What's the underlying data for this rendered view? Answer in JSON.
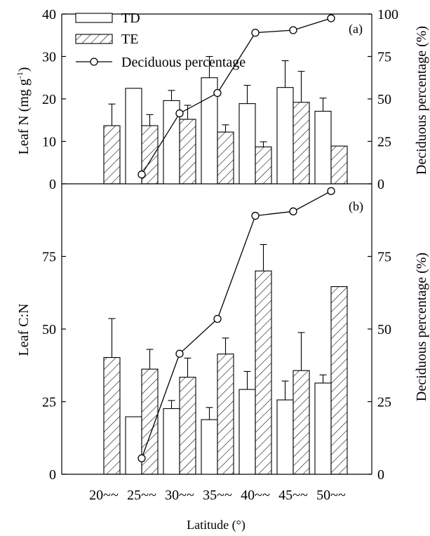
{
  "chart_data": [
    {
      "panel": "(a)",
      "type": "bar",
      "categories": [
        "20~~",
        "25~~",
        "30~~",
        "35~~",
        "40~~",
        "45~~",
        "50~~"
      ],
      "series": [
        {
          "name": "TD",
          "kind": "bar",
          "values": [
            null,
            22.5,
            19.6,
            25.0,
            18.9,
            22.7,
            17.1
          ],
          "errors": [
            null,
            null,
            2.4,
            5.0,
            4.3,
            6.3,
            3.1
          ]
        },
        {
          "name": "TE",
          "kind": "bar",
          "hatch": true,
          "values": [
            13.7,
            13.7,
            15.2,
            12.2,
            8.7,
            19.2,
            8.9
          ],
          "errors": [
            5.1,
            2.6,
            3.3,
            1.7,
            1.2,
            7.3,
            null
          ]
        },
        {
          "name": "Deciduous percentage",
          "kind": "line",
          "axis": "right",
          "values": [
            null,
            5.5,
            41.5,
            53.5,
            89,
            90.5,
            97.5
          ]
        }
      ],
      "ylabel": "Leaf N (mg g⁻¹)",
      "ylabel_main": "Leaf N (mg g",
      "ylabel_sup": "-1",
      "ylabel_close": ")",
      "y2label": "Deciduous percentage (%)",
      "ylim": [
        0,
        40
      ],
      "yticks": [
        0,
        10,
        20,
        30,
        40
      ],
      "y2lim": [
        0,
        100
      ],
      "y2ticks": [
        0,
        25,
        50,
        75,
        100
      ],
      "legend": [
        "TD",
        "TE",
        "Deciduous percentage"
      ],
      "legend_position": "top-left"
    },
    {
      "panel": "(b)",
      "type": "bar",
      "categories": [
        "20~~",
        "25~~",
        "30~~",
        "35~~",
        "40~~",
        "45~~",
        "50~~"
      ],
      "series": [
        {
          "name": "TD",
          "kind": "bar",
          "values": [
            null,
            19.8,
            22.6,
            18.8,
            29.2,
            25.6,
            31.4
          ],
          "errors": [
            null,
            null,
            2.8,
            4.2,
            6.2,
            6.5,
            2.8
          ]
        },
        {
          "name": "TE",
          "kind": "bar",
          "hatch": true,
          "values": [
            40.2,
            36.2,
            33.4,
            41.4,
            70.0,
            35.7,
            64.6
          ],
          "errors": [
            13.4,
            6.8,
            6.6,
            5.5,
            9.1,
            13.1,
            null
          ]
        },
        {
          "name": "Deciduous percentage",
          "kind": "line",
          "axis": "right",
          "values": [
            null,
            5.5,
            41.5,
            53.5,
            89,
            90.5,
            97.5
          ]
        }
      ],
      "ylabel": "Leaf C:N",
      "y2label": "Deciduous percentage (%)",
      "ylim": [
        0,
        100
      ],
      "yticks": [
        0,
        25,
        50,
        75
      ],
      "y2lim": [
        0,
        100
      ],
      "y2ticks": [
        0,
        25,
        50,
        75
      ]
    }
  ],
  "xlabel": "Latitude (°)"
}
